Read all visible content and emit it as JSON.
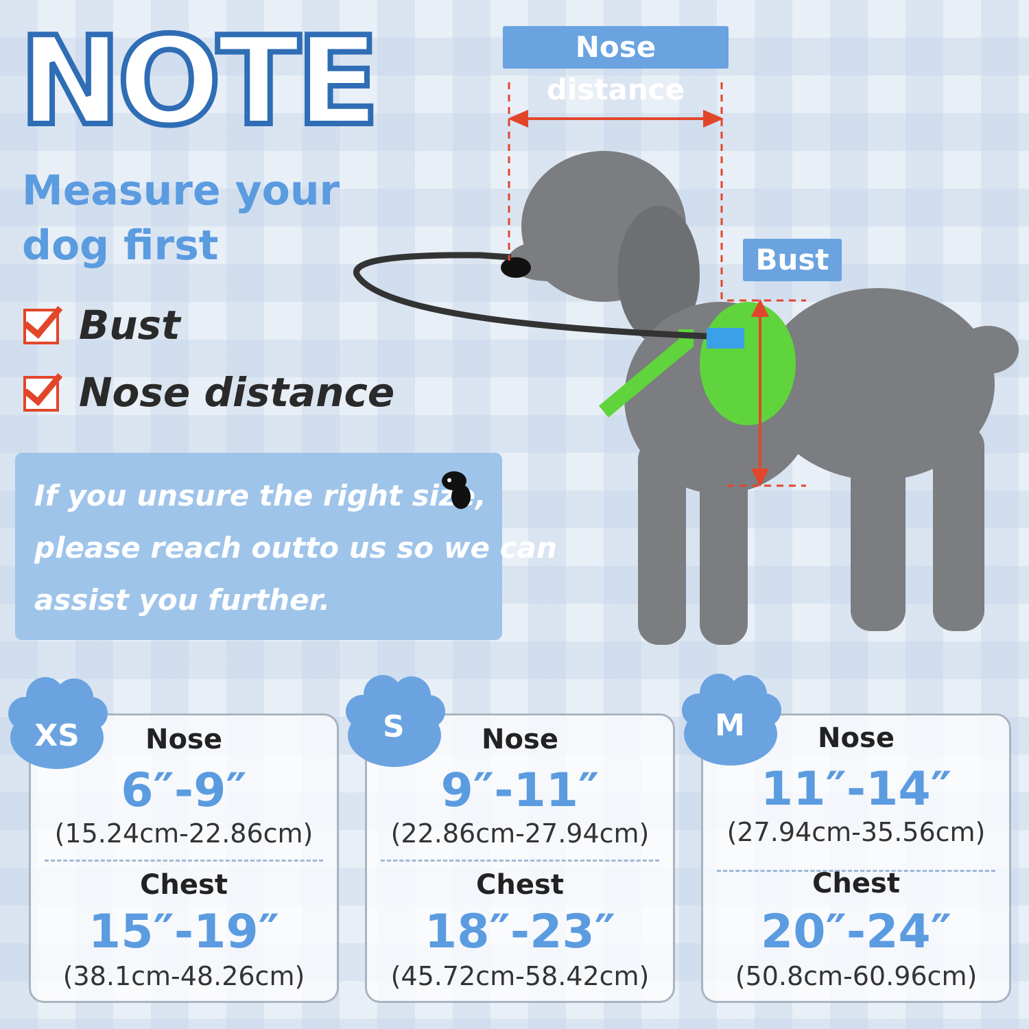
{
  "title": "NOTE",
  "subtitle": [
    "Measure your",
    "dog first"
  ],
  "checklist": [
    "Bust",
    "Nose distance"
  ],
  "info_lines": [
    "If you unsure the right size,",
    "please reach outto us so we can",
    "assist you further."
  ],
  "labels": {
    "nose_distance": "Nose distance",
    "bust": "Bust"
  },
  "colors": {
    "accent": "#5b9be0",
    "label_bg": "#6aa3e0",
    "arrow": "#e2462a",
    "info_bg": "#9fc4ea"
  },
  "sizes": [
    {
      "size": "XS",
      "nose_label": "Nose",
      "nose": "6″-9″",
      "nose_cm": "(15.24cm-22.86cm)",
      "chest_label": "Chest",
      "chest": "15″-19″",
      "chest_cm": "(38.1cm-48.26cm)"
    },
    {
      "size": "S",
      "nose_label": "Nose",
      "nose": "9″-11″",
      "nose_cm": "(22.86cm-27.94cm)",
      "chest_label": "Chest",
      "chest": "18″-23″",
      "chest_cm": "(45.72cm-58.42cm)"
    },
    {
      "size": "M",
      "nose_label": "Nose",
      "nose": "11″-14″",
      "nose_cm": "(27.94cm-35.56cm)",
      "chest_label": "Chest",
      "chest": "20″-24″",
      "chest_cm": "(50.8cm-60.96cm)"
    }
  ]
}
